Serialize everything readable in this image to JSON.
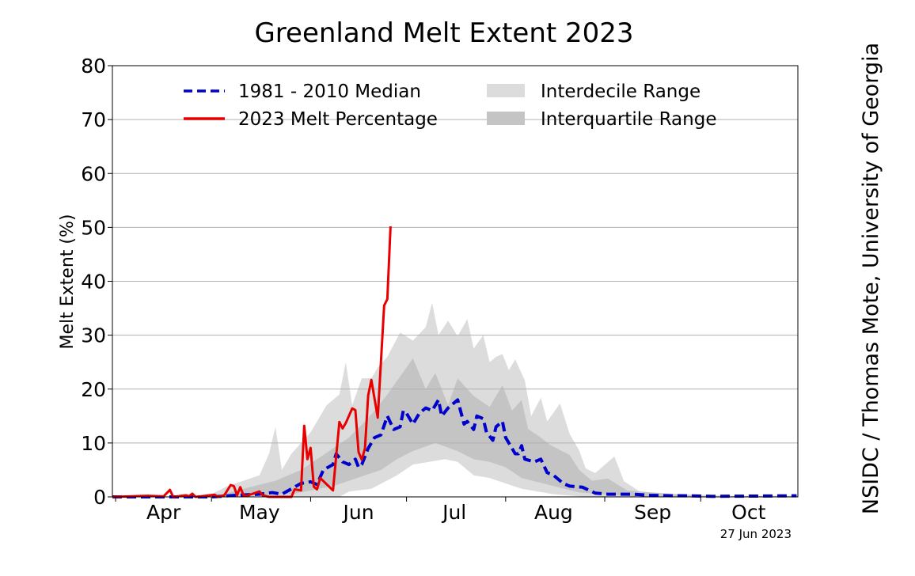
{
  "chart_data": {
    "type": "line",
    "title": "Greenland Melt Extent 2023",
    "xlabel": "",
    "ylabel": "Melt Extent (%)",
    "x_unit": "days since Apr 1",
    "xlim": [
      -1,
      213.4
    ],
    "ylim": [
      0,
      80
    ],
    "yticks": [
      0,
      10,
      20,
      30,
      40,
      50,
      60,
      70,
      80
    ],
    "grid": true,
    "month_ticks": [
      0,
      30,
      61,
      91,
      122,
      153,
      183
    ],
    "month_labels": [
      {
        "label": "Apr",
        "day": 15
      },
      {
        "label": "May",
        "day": 45
      },
      {
        "label": "Jun",
        "day": 76
      },
      {
        "label": "Jul",
        "day": 106
      },
      {
        "label": "Aug",
        "day": 137
      },
      {
        "label": "Sep",
        "day": 168
      },
      {
        "label": "Oct",
        "day": 198
      }
    ],
    "legend": {
      "placement": "top",
      "entries": [
        {
          "label": "1981 - 2010 Median",
          "kind": "dashed-line",
          "color": "#0000cc"
        },
        {
          "label": "2023 Melt Percentage",
          "kind": "line",
          "color": "#e80000"
        },
        {
          "label": "Interdecile Range",
          "kind": "patch",
          "color": "#dcdcdc"
        },
        {
          "label": "Interquartile Range",
          "kind": "patch",
          "color": "#c4c4c4"
        }
      ]
    },
    "date_note": "27 Jun 2023",
    "credit": "NSIDC / Thomas Mote, University of Georgia",
    "series": [
      {
        "name": "Interdecile Range",
        "color": "#dcdcdc",
        "upper": [
          [
            -1,
            0
          ],
          [
            25,
            0
          ],
          [
            30,
            0.5
          ],
          [
            35,
            2
          ],
          [
            40,
            3
          ],
          [
            45,
            4
          ],
          [
            48,
            8
          ],
          [
            50,
            13
          ],
          [
            52,
            5
          ],
          [
            55,
            8
          ],
          [
            58,
            10
          ],
          [
            61,
            12
          ],
          [
            63,
            14
          ],
          [
            66,
            17
          ],
          [
            70,
            19
          ],
          [
            72,
            25
          ],
          [
            74,
            17
          ],
          [
            77,
            22
          ],
          [
            80,
            22
          ],
          [
            82,
            24
          ],
          [
            85,
            26
          ],
          [
            89,
            30.5
          ],
          [
            93,
            29
          ],
          [
            97,
            31.5
          ],
          [
            99,
            36
          ],
          [
            101,
            30
          ],
          [
            104,
            32.7
          ],
          [
            107,
            29.8
          ],
          [
            110,
            33
          ],
          [
            112,
            27.5
          ],
          [
            115,
            30
          ],
          [
            117,
            25
          ],
          [
            119,
            26
          ],
          [
            121,
            26.5
          ],
          [
            123,
            23.5
          ],
          [
            125,
            25.5
          ],
          [
            128,
            21.6
          ],
          [
            130,
            15
          ],
          [
            133,
            18.4
          ],
          [
            135,
            14
          ],
          [
            139,
            17.3
          ],
          [
            142,
            11.7
          ],
          [
            145,
            8.6
          ],
          [
            147,
            5.3
          ],
          [
            150,
            4.4
          ],
          [
            156,
            7.5
          ],
          [
            159,
            2.9
          ],
          [
            164,
            1
          ],
          [
            174,
            0.6
          ],
          [
            179,
            0.5
          ],
          [
            190,
            0.2
          ],
          [
            213.4,
            0.2
          ]
        ],
        "lower": [
          [
            -1,
            0
          ],
          [
            70,
            0
          ],
          [
            73,
            1
          ],
          [
            80,
            1.5
          ],
          [
            88,
            4
          ],
          [
            93,
            6
          ],
          [
            103,
            7
          ],
          [
            107,
            6.5
          ],
          [
            112,
            4
          ],
          [
            117,
            3.5
          ],
          [
            122,
            2.5
          ],
          [
            127,
            1.5
          ],
          [
            137,
            0.5
          ],
          [
            147,
            0
          ],
          [
            213.4,
            0
          ]
        ]
      },
      {
        "name": "Interquartile Range",
        "color": "#c4c4c4",
        "upper": [
          [
            -1,
            0
          ],
          [
            30,
            0
          ],
          [
            40,
            1.5
          ],
          [
            50,
            3
          ],
          [
            58,
            5
          ],
          [
            63,
            7
          ],
          [
            68,
            9
          ],
          [
            73,
            11
          ],
          [
            78,
            14
          ],
          [
            81,
            16
          ],
          [
            85,
            19
          ],
          [
            93,
            25.7
          ],
          [
            97,
            20
          ],
          [
            100,
            23
          ],
          [
            104,
            17
          ],
          [
            107,
            22
          ],
          [
            112,
            18.7
          ],
          [
            117,
            16.7
          ],
          [
            121,
            20.7
          ],
          [
            124,
            16
          ],
          [
            127,
            18
          ],
          [
            129,
            12.6
          ],
          [
            133,
            11
          ],
          [
            136,
            9.6
          ],
          [
            142,
            7.8
          ],
          [
            145,
            5
          ],
          [
            149,
            3
          ],
          [
            154,
            3.4
          ],
          [
            160,
            1.2
          ],
          [
            174,
            0.5
          ],
          [
            185,
            0.1
          ],
          [
            213.4,
            0.1
          ]
        ],
        "lower": [
          [
            -1,
            0
          ],
          [
            30,
            0
          ],
          [
            55,
            0.5
          ],
          [
            68,
            2
          ],
          [
            73,
            3
          ],
          [
            78,
            4
          ],
          [
            83,
            5
          ],
          [
            88,
            7
          ],
          [
            93,
            8.5
          ],
          [
            100,
            10
          ],
          [
            107,
            8.5
          ],
          [
            112,
            7
          ],
          [
            117,
            6.5
          ],
          [
            122,
            5.5
          ],
          [
            127,
            3.5
          ],
          [
            137,
            2
          ],
          [
            145,
            0.8
          ],
          [
            162,
            0.1
          ],
          [
            213.4,
            0
          ]
        ]
      },
      {
        "name": "1981 - 2010 Median",
        "color": "#0000cc",
        "points": [
          [
            -1,
            0
          ],
          [
            30,
            0
          ],
          [
            38,
            0.3
          ],
          [
            45,
            0.5
          ],
          [
            49,
            0.8
          ],
          [
            52,
            0.5
          ],
          [
            55,
            1.5
          ],
          [
            58,
            2.5
          ],
          [
            61,
            2.8
          ],
          [
            63,
            2.3
          ],
          [
            65,
            5
          ],
          [
            68,
            6
          ],
          [
            69,
            8
          ],
          [
            71,
            6.5
          ],
          [
            73,
            6
          ],
          [
            75,
            7
          ],
          [
            76,
            5.5
          ],
          [
            77,
            6
          ],
          [
            79,
            9
          ],
          [
            81,
            11
          ],
          [
            83,
            11.5
          ],
          [
            85,
            15
          ],
          [
            87,
            12.5
          ],
          [
            89,
            13
          ],
          [
            90,
            16
          ],
          [
            91,
            15.5
          ],
          [
            93,
            13.5
          ],
          [
            95,
            15.5
          ],
          [
            97,
            16.5
          ],
          [
            99,
            16
          ],
          [
            101,
            18
          ],
          [
            102,
            15
          ],
          [
            104,
            16.5
          ],
          [
            105,
            17
          ],
          [
            107,
            18
          ],
          [
            109,
            13.5
          ],
          [
            110,
            14
          ],
          [
            112,
            12.5
          ],
          [
            113,
            15
          ],
          [
            115,
            14.5
          ],
          [
            116,
            12
          ],
          [
            118,
            10.5
          ],
          [
            119,
            13
          ],
          [
            121,
            14
          ],
          [
            122,
            11
          ],
          [
            125,
            8
          ],
          [
            126,
            8
          ],
          [
            127,
            9.5
          ],
          [
            128,
            7
          ],
          [
            131,
            6.5
          ],
          [
            133,
            7
          ],
          [
            135,
            4.5
          ],
          [
            137,
            4
          ],
          [
            140,
            2.5
          ],
          [
            142,
            2
          ],
          [
            146,
            1.8
          ],
          [
            150,
            0.7
          ],
          [
            154,
            0.5
          ],
          [
            162,
            0.5
          ],
          [
            167,
            0.3
          ],
          [
            174,
            0.2
          ],
          [
            179,
            0.2
          ],
          [
            187,
            0.1
          ],
          [
            213,
            0.2
          ]
        ]
      },
      {
        "name": "2023 Melt Percentage",
        "color": "#e80000",
        "points": [
          [
            -1,
            0
          ],
          [
            10,
            0.2
          ],
          [
            15,
            0.1
          ],
          [
            17,
            1.3
          ],
          [
            18,
            0
          ],
          [
            22,
            0.3
          ],
          [
            23,
            0.1
          ],
          [
            24,
            0.6
          ],
          [
            25,
            0
          ],
          [
            31,
            0.4
          ],
          [
            32,
            0
          ],
          [
            34,
            0.3
          ],
          [
            36,
            2.2
          ],
          [
            37,
            2.0
          ],
          [
            38,
            0.3
          ],
          [
            39,
            1.8
          ],
          [
            40,
            0.3
          ],
          [
            41,
            0.2
          ],
          [
            45,
            1.0
          ],
          [
            46,
            0.3
          ],
          [
            48,
            0
          ],
          [
            55,
            0
          ],
          [
            56,
            1.4
          ],
          [
            58,
            1.2
          ],
          [
            59,
            13.2
          ],
          [
            60,
            7.0
          ],
          [
            61,
            9.1
          ],
          [
            62,
            1.9
          ],
          [
            63,
            1.4
          ],
          [
            64,
            3.5
          ],
          [
            68,
            1.2
          ],
          [
            70,
            13.9
          ],
          [
            71,
            12.7
          ],
          [
            72,
            13.7
          ],
          [
            74,
            16.4
          ],
          [
            75,
            16.1
          ],
          [
            76,
            8.3
          ],
          [
            77,
            6.9
          ],
          [
            78,
            9.0
          ],
          [
            79,
            18.8
          ],
          [
            80,
            21.7
          ],
          [
            82,
            14.7
          ],
          [
            84,
            35.5
          ],
          [
            85,
            36.7
          ],
          [
            86,
            50.2
          ]
        ]
      }
    ]
  }
}
